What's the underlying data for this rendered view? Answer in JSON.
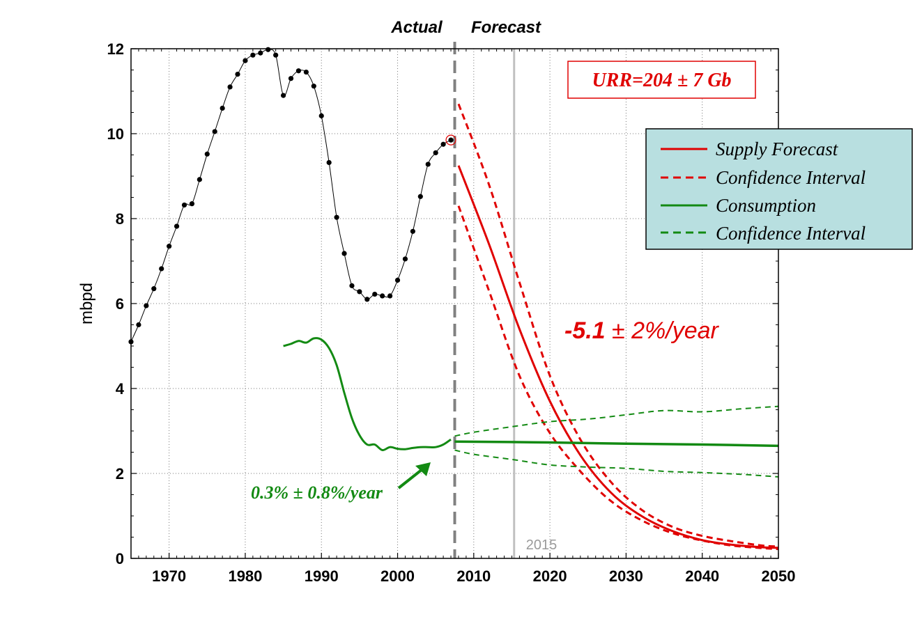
{
  "chart_data": {
    "type": "line",
    "title": "",
    "xlabel": "",
    "ylabel": "mbpd",
    "xlim": [
      1965,
      2050
    ],
    "ylim": [
      0,
      12
    ],
    "grid": true,
    "x_ticks": [
      1970,
      1980,
      1990,
      2000,
      2010,
      2020,
      2030,
      2040,
      2050
    ],
    "y_ticks": [
      0,
      2,
      4,
      6,
      8,
      10,
      12
    ],
    "header_labels": {
      "actual": "Actual",
      "forecast": "Forecast"
    },
    "split_year": 2007.5,
    "marker_line": {
      "x": 2015.3,
      "label": "2015"
    },
    "urr_box": "URR=204 ± 7 Gb",
    "decline_annotation": {
      "bold": "-5.1",
      "rest": " ± 2%/year"
    },
    "growth_annotation": "0.3% ± 0.8%/year",
    "legend_position": "top-right",
    "legend": [
      {
        "label": "Supply Forecast",
        "color": "#e00000",
        "style": "solid"
      },
      {
        "label": "Confidence Interval",
        "color": "#e00000",
        "style": "dashed"
      },
      {
        "label": "Consumption",
        "color": "#138a13",
        "style": "solid"
      },
      {
        "label": "Confidence Interval",
        "color": "#138a13",
        "style": "dashed"
      }
    ],
    "colors": {
      "production": "#000000",
      "supply": "#e00000",
      "consumption": "#138a13",
      "split_line": "#808080",
      "marker_line": "#c0c0c0",
      "legend_bg": "#b8dfe0"
    },
    "series": [
      {
        "kind": "production",
        "x": [
          1965,
          1966,
          1967,
          1968,
          1969,
          1970,
          1971,
          1972,
          1973,
          1974,
          1975,
          1976,
          1977,
          1978,
          1979,
          1980,
          1981,
          1982,
          1983,
          1984,
          1985,
          1986,
          1987,
          1988,
          1989,
          1990,
          1991,
          1992,
          1993,
          1994,
          1995,
          1996,
          1997,
          1998,
          1999,
          2000,
          2001,
          2002,
          2003,
          2004,
          2005,
          2006,
          2007
        ],
        "y": [
          5.1,
          5.5,
          5.95,
          6.35,
          6.82,
          7.35,
          7.82,
          8.32,
          8.35,
          8.92,
          9.52,
          10.05,
          10.6,
          11.1,
          11.4,
          11.72,
          11.85,
          11.9,
          11.98,
          11.85,
          10.9,
          11.3,
          11.48,
          11.45,
          11.12,
          10.42,
          9.32,
          8.03,
          7.18,
          6.42,
          6.28,
          6.1,
          6.22,
          6.18,
          6.18,
          6.55,
          7.05,
          7.7,
          8.52,
          9.28,
          9.55,
          9.75,
          9.85
        ]
      },
      {
        "kind": "consumption",
        "x": [
          1985,
          1986,
          1987,
          1988,
          1989,
          1990,
          1991,
          1992,
          1993,
          1994,
          1995,
          1996,
          1997,
          1998,
          1999,
          2000,
          2001,
          2002,
          2003,
          2004,
          2005,
          2006,
          2007
        ],
        "y": [
          5.0,
          5.05,
          5.12,
          5.08,
          5.18,
          5.15,
          4.95,
          4.55,
          3.9,
          3.3,
          2.9,
          2.68,
          2.68,
          2.55,
          2.62,
          2.58,
          2.57,
          2.6,
          2.62,
          2.62,
          2.62,
          2.68,
          2.8
        ]
      },
      {
        "kind": "supply_forecast",
        "x": [
          2008,
          2012,
          2016,
          2020,
          2024,
          2028,
          2032,
          2036,
          2040,
          2044,
          2048,
          2050
        ],
        "y": [
          9.25,
          7.4,
          5.4,
          3.7,
          2.43,
          1.55,
          1.0,
          0.65,
          0.43,
          0.32,
          0.26,
          0.25
        ]
      },
      {
        "kind": "supply_upper",
        "x": [
          2008,
          2012,
          2016,
          2020,
          2024,
          2028,
          2032,
          2036,
          2040,
          2044,
          2048,
          2050
        ],
        "y": [
          10.7,
          8.8,
          6.5,
          4.3,
          2.8,
          1.8,
          1.15,
          0.75,
          0.53,
          0.4,
          0.3,
          0.28
        ]
      },
      {
        "kind": "supply_lower",
        "x": [
          2008,
          2012,
          2016,
          2020,
          2024,
          2028,
          2032,
          2036,
          2040,
          2044,
          2048,
          2050
        ],
        "y": [
          8.3,
          6.3,
          4.3,
          2.95,
          2.05,
          1.35,
          0.9,
          0.6,
          0.42,
          0.3,
          0.24,
          0.22
        ]
      },
      {
        "kind": "consumption_forecast",
        "x": [
          2007.5,
          2020,
          2030,
          2040,
          2050
        ],
        "y": [
          2.75,
          2.73,
          2.7,
          2.68,
          2.65
        ]
      },
      {
        "kind": "consumption_upper",
        "x": [
          2007.5,
          2010,
          2015,
          2020,
          2025,
          2030,
          2035,
          2040,
          2045,
          2050
        ],
        "y": [
          2.88,
          2.97,
          3.1,
          3.22,
          3.28,
          3.38,
          3.48,
          3.45,
          3.52,
          3.58
        ]
      },
      {
        "kind": "consumption_lower",
        "x": [
          2007.5,
          2010,
          2015,
          2020,
          2025,
          2030,
          2035,
          2040,
          2045,
          2050
        ],
        "y": [
          2.55,
          2.45,
          2.33,
          2.2,
          2.15,
          2.12,
          2.05,
          2.02,
          1.98,
          1.92
        ]
      }
    ]
  }
}
